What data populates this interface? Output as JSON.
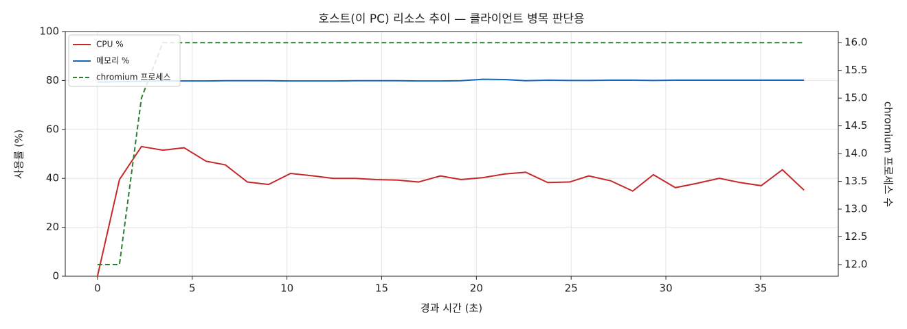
{
  "chart_data": {
    "type": "line",
    "title": "호스트(이 PC) 리소스 추이 — 클라이언트 병목 판단용",
    "x_label": "경과 시간 (초)",
    "y_label": "사용률 (%)",
    "y2_label": "chromium 프로세스 수",
    "x": [
      0,
      1.16,
      2.32,
      3.45,
      4.57,
      5.73,
      6.75,
      7.91,
      9.03,
      10.19,
      11.39,
      12.44,
      13.6,
      14.69,
      15.85,
      16.94,
      18.1,
      19.19,
      20.35,
      21.51,
      22.6,
      23.76,
      24.92,
      25.93,
      27.09,
      28.25,
      29.34,
      30.5,
      31.66,
      32.82,
      33.9,
      35.03,
      36.15,
      37.29
    ],
    "series": [
      {
        "name": "CPU %",
        "color": "#c62828",
        "dash": false,
        "values": [
          0,
          39.5,
          53,
          51.5,
          52.5,
          47,
          45.5,
          38.5,
          37.5,
          42,
          41,
          40,
          40,
          39.5,
          39.3,
          38.5,
          41,
          39.5,
          40.3,
          41.8,
          42.5,
          38.3,
          38.5,
          41,
          39,
          34.8,
          41.5,
          36.2,
          38,
          40,
          38.3,
          37,
          43.5,
          35.2
        ]
      },
      {
        "name": "메모리 %",
        "color": "#1565c0",
        "dash": false,
        "values": [
          79.3,
          79.5,
          79.7,
          79.8,
          79.8,
          79.8,
          79.9,
          79.9,
          79.9,
          79.8,
          79.8,
          79.8,
          79.9,
          79.9,
          79.9,
          79.8,
          79.8,
          79.9,
          80.5,
          80.4,
          79.9,
          80.1,
          80.0,
          80.0,
          80.1,
          80.1,
          80.0,
          80.1,
          80.1,
          80.1,
          80.1,
          80.1,
          80.1,
          80.1
        ]
      },
      {
        "name": "chromium 프로세스",
        "color": "#2e7d32",
        "dash": true,
        "axis": "y2",
        "values": [
          12,
          12,
          15,
          16,
          16,
          16,
          16,
          16,
          16,
          16,
          16,
          16,
          16,
          16,
          16,
          16,
          16,
          16,
          16,
          16,
          16,
          16,
          16,
          16,
          16,
          16,
          16,
          16,
          16,
          16,
          16,
          16,
          16,
          16
        ]
      }
    ],
    "xlim": [
      -1.7,
      39.1
    ],
    "xticks": [
      0,
      5,
      10,
      15,
      20,
      25,
      30,
      35
    ],
    "ylim": [
      0,
      100
    ],
    "yticks": [
      0,
      20,
      40,
      60,
      80,
      100
    ],
    "y2lim": [
      11.79,
      16.2
    ],
    "y2ticks": [
      {
        "value": 12,
        "label": "12.0"
      },
      {
        "value": 12.5,
        "label": "12.5"
      },
      {
        "value": 13,
        "label": "13.0"
      },
      {
        "value": 13.5,
        "label": "13.5"
      },
      {
        "value": 14,
        "label": "14.0"
      },
      {
        "value": 14.5,
        "label": "14.5"
      },
      {
        "value": 15,
        "label": "15.0"
      },
      {
        "value": 15.5,
        "label": "15.5"
      },
      {
        "value": 16,
        "label": "16.0"
      }
    ],
    "grid": true,
    "legend": "upper-left"
  }
}
